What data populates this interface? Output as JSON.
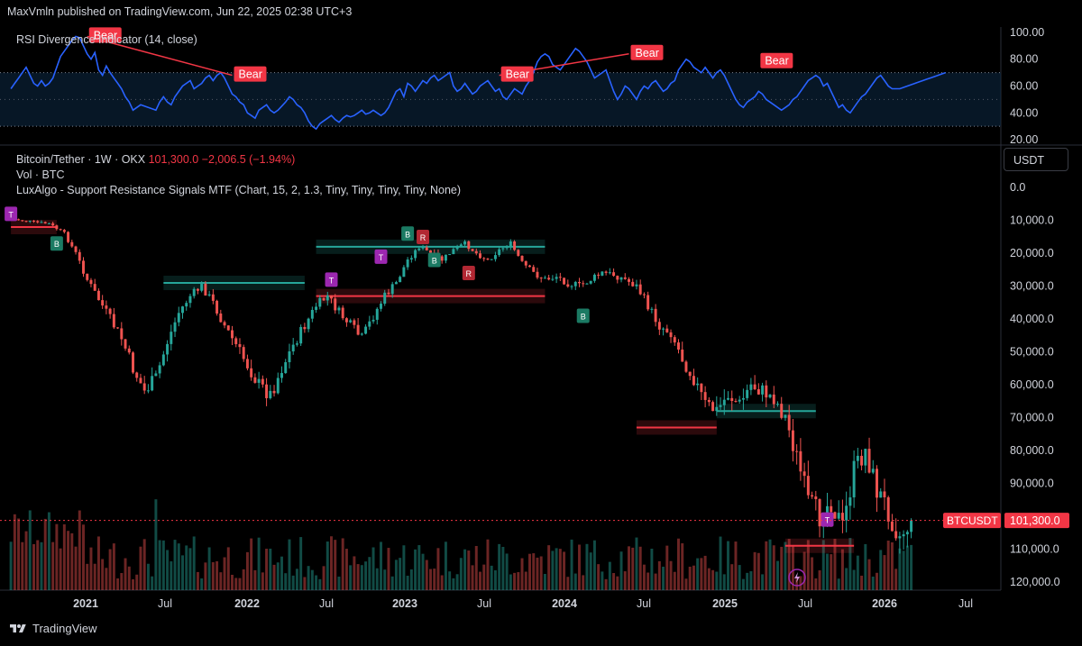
{
  "header": {
    "publisher": "MaxVmln published on TradingView.com, Jun 22, 2025 02:38 UTC+3"
  },
  "rsi": {
    "label": "RSI Divergence Indicator (14, close)",
    "bear_label": "Bear",
    "ticks": [
      "100.00",
      "80.00",
      "60.00",
      "40.00",
      "20.00"
    ]
  },
  "legend": {
    "symbol": "Bitcoin/Tether · 1W · OKX",
    "price": "101,300.0",
    "change": "−2,006.5 (−1.94%)",
    "vol": "Vol · BTC",
    "indicator": "LuxAlgo - Support Resistance Signals MTF (Chart, 15, 2, 1.3, Tiny, Tiny, Tiny, Tiny, None)"
  },
  "currency": "USDT",
  "price_badge": {
    "symbol": "BTCUSDT",
    "value": "101,300.0"
  },
  "footer": {
    "brand": "TradingView"
  },
  "colors": {
    "up": "#26a69a",
    "down": "#ef5350",
    "rsi": "#2962ff",
    "bear": "#f23645"
  },
  "chart_data": [
    {
      "type": "line",
      "title": "RSI Divergence Indicator (14, close)",
      "y_ticks": [
        100,
        80,
        60,
        40,
        20
      ],
      "bands": [
        30,
        70
      ],
      "ylim": [
        18,
        104
      ],
      "x": [
        0,
        1,
        2,
        3,
        4,
        5,
        6,
        7,
        8,
        9,
        10,
        11,
        12,
        13,
        14,
        15,
        16,
        17,
        18,
        19,
        20,
        21,
        22,
        23,
        24,
        25,
        26,
        27,
        28,
        29,
        30,
        31,
        32,
        33,
        34,
        35,
        36,
        37,
        38,
        39,
        40,
        41,
        42,
        43,
        44,
        45,
        46,
        47,
        48,
        49,
        50,
        51,
        52,
        53,
        54,
        55,
        56,
        57,
        58,
        59,
        60,
        61,
        62,
        63,
        64,
        65,
        66,
        67,
        68,
        69,
        70,
        71,
        72,
        73,
        74,
        75,
        76,
        77,
        78,
        79,
        80,
        81,
        82,
        83,
        84,
        85,
        86,
        87,
        88,
        89,
        90,
        91,
        92,
        93,
        94,
        95,
        96,
        97,
        98,
        99,
        100,
        101,
        102,
        103,
        104,
        105,
        106,
        107,
        108,
        109,
        110,
        111,
        112,
        113,
        114,
        115,
        116,
        117,
        118,
        119,
        120,
        121,
        122,
        123,
        124,
        125,
        126,
        127,
        128,
        129,
        130,
        131,
        132,
        133,
        134,
        135,
        136,
        137,
        138,
        139,
        140,
        141,
        142,
        143,
        144,
        145,
        146,
        147,
        148,
        149,
        150,
        151,
        152,
        153,
        154,
        155,
        156,
        157,
        158,
        159,
        160,
        161,
        162,
        163,
        164,
        165,
        166,
        167,
        168,
        169,
        170,
        171,
        172,
        173,
        174,
        175,
        176,
        177,
        178,
        179,
        180,
        181,
        182,
        183,
        184,
        185,
        186,
        187,
        188,
        189,
        190,
        191,
        192,
        193,
        194,
        195,
        196,
        197,
        198,
        199,
        200,
        201,
        202,
        203,
        204,
        205,
        206,
        207,
        208,
        209,
        210,
        211,
        212,
        213,
        214,
        215,
        216,
        217,
        218,
        219,
        220,
        221,
        222,
        223,
        224,
        225,
        226,
        227,
        228,
        229,
        230,
        231,
        232,
        233,
        234,
        235,
        236,
        237,
        238,
        239,
        240,
        241,
        242,
        243,
        244,
        245
      ],
      "values": [
        58,
        62,
        66,
        70,
        74,
        68,
        62,
        60,
        64,
        60,
        62,
        66,
        74,
        82,
        86,
        90,
        94,
        97,
        96,
        90,
        84,
        80,
        85,
        72,
        68,
        75,
        70,
        66,
        62,
        58,
        52,
        48,
        42,
        44,
        46,
        45,
        44,
        43,
        42,
        48,
        52,
        48,
        46,
        52,
        56,
        60,
        62,
        64,
        58,
        60,
        62,
        66,
        68,
        64,
        68,
        70,
        66,
        60,
        54,
        52,
        48,
        46,
        40,
        38,
        36,
        42,
        44,
        46,
        42,
        40,
        42,
        45,
        48,
        52,
        50,
        46,
        44,
        40,
        34,
        30,
        28,
        32,
        34,
        36,
        38,
        35,
        33,
        36,
        38,
        37,
        38,
        40,
        42,
        39,
        40,
        42,
        40,
        38,
        40,
        44,
        50,
        56,
        58,
        52,
        62,
        60,
        56,
        60,
        64,
        62,
        66,
        68,
        64,
        66,
        68,
        70,
        60,
        56,
        58,
        62,
        58,
        54,
        56,
        60,
        62,
        64,
        60,
        56,
        58,
        52,
        50,
        54,
        58,
        56,
        54,
        60,
        64,
        70,
        78,
        82,
        84,
        82,
        76,
        74,
        72,
        76,
        80,
        84,
        88,
        86,
        82,
        78,
        72,
        66,
        68,
        70,
        72,
        64,
        56,
        50,
        54,
        60,
        58,
        54,
        50,
        56,
        60,
        58,
        62,
        64,
        60,
        56,
        58,
        62,
        64,
        72,
        76,
        80,
        78,
        74,
        72,
        70,
        74,
        70,
        66,
        70,
        72,
        68,
        62,
        56,
        50,
        46,
        44,
        48,
        50,
        52,
        56,
        54,
        50,
        48,
        46,
        44,
        42,
        44,
        46,
        50,
        52,
        56,
        60,
        64,
        66,
        68,
        66,
        60,
        62,
        56,
        50,
        44,
        46,
        42,
        40,
        44,
        48,
        52,
        54,
        58,
        62,
        66,
        68,
        64,
        60,
        58,
        58,
        58,
        59,
        60,
        61,
        62,
        63,
        64,
        65,
        66,
        67,
        68,
        69,
        70
      ],
      "annotations": [
        {
          "text": "Bear",
          "x": 20,
          "y": 97
        },
        {
          "text": "Bear",
          "x": 58,
          "y": 68
        },
        {
          "text": "Bear",
          "x": 128,
          "y": 68
        },
        {
          "text": "Bear",
          "x": 162,
          "y": 84
        },
        {
          "text": "Bear",
          "x": 196,
          "y": 78
        }
      ]
    },
    {
      "type": "candlestick",
      "title": "Bitcoin/Tether · 1W · OKX",
      "y_scale": "inverted",
      "y_ticks": [
        0,
        10000,
        20000,
        30000,
        40000,
        50000,
        60000,
        70000,
        80000,
        90000,
        100000,
        110000,
        120000
      ],
      "y_tick_labels": [
        "0.0",
        "10,000.0",
        "20,000.0",
        "30,000.0",
        "40,000.0",
        "50,000.0",
        "60,000.0",
        "70,000.0",
        "80,000.0",
        "90,000.0",
        "",
        "110,000.0",
        "120,000.0"
      ],
      "ylim": [
        -5000,
        122500
      ],
      "x_tick_labels": [
        "2021",
        "Jul",
        "2022",
        "Jul",
        "2023",
        "Jul",
        "2024",
        "Jul",
        "2025",
        "Jul",
        "2026",
        "Jul"
      ],
      "last_price": 101300,
      "close_path": [
        [
          0,
          9500
        ],
        [
          6,
          10500
        ],
        [
          10,
          11000
        ],
        [
          14,
          14000
        ],
        [
          17,
          20000
        ],
        [
          20,
          28000
        ],
        [
          23,
          34000
        ],
        [
          26,
          40000
        ],
        [
          29,
          46000
        ],
        [
          32,
          55000
        ],
        [
          35,
          62000
        ],
        [
          38,
          58000
        ],
        [
          41,
          47000
        ],
        [
          44,
          38000
        ],
        [
          47,
          33000
        ],
        [
          50,
          30000
        ],
        [
          53,
          35000
        ],
        [
          56,
          42000
        ],
        [
          59,
          48000
        ],
        [
          62,
          54000
        ],
        [
          65,
          60000
        ],
        [
          68,
          63000
        ],
        [
          71,
          55000
        ],
        [
          74,
          48000
        ],
        [
          77,
          42000
        ],
        [
          80,
          36000
        ],
        [
          83,
          33000
        ],
        [
          86,
          38000
        ],
        [
          89,
          42000
        ],
        [
          92,
          46000
        ],
        [
          95,
          39000
        ],
        [
          98,
          33000
        ],
        [
          101,
          29000
        ],
        [
          104,
          22000
        ],
        [
          107,
          18000
        ],
        [
          110,
          20000
        ],
        [
          113,
          22000
        ],
        [
          116,
          19000
        ],
        [
          119,
          17000
        ],
        [
          122,
          20000
        ],
        [
          125,
          22000
        ],
        [
          128,
          19000
        ],
        [
          131,
          17000
        ],
        [
          134,
          23000
        ],
        [
          137,
          26000
        ],
        [
          140,
          28000
        ],
        [
          143,
          27000
        ],
        [
          146,
          29000
        ],
        [
          149,
          30000
        ],
        [
          152,
          28000
        ],
        [
          155,
          26000
        ],
        [
          158,
          26500
        ],
        [
          161,
          28000
        ],
        [
          164,
          30000
        ],
        [
          167,
          36000
        ],
        [
          170,
          42000
        ],
        [
          173,
          44000
        ],
        [
          176,
          52000
        ],
        [
          179,
          58000
        ],
        [
          182,
          66000
        ],
        [
          185,
          68000
        ],
        [
          188,
          63000
        ],
        [
          191,
          66000
        ],
        [
          194,
          60000
        ],
        [
          197,
          62000
        ],
        [
          200,
          64000
        ],
        [
          203,
          70000
        ],
        [
          206,
          82000
        ],
        [
          209,
          96000
        ],
        [
          212,
          100000
        ],
        [
          215,
          95000
        ],
        [
          218,
          104000
        ],
        [
          221,
          86000
        ],
        [
          224,
          80000
        ],
        [
          227,
          92000
        ],
        [
          230,
          98000
        ],
        [
          233,
          106000
        ],
        [
          236,
          101300
        ]
      ],
      "support_resistance": [
        {
          "x0": 0,
          "x1": 12,
          "y": 12000,
          "color": "red"
        },
        {
          "x0": 40,
          "x1": 77,
          "y": 29000,
          "color": "green"
        },
        {
          "x0": 80,
          "x1": 140,
          "y": 18000,
          "color": "green"
        },
        {
          "x0": 80,
          "x1": 140,
          "y": 33000,
          "color": "red"
        },
        {
          "x0": 164,
          "x1": 185,
          "y": 73000,
          "color": "red"
        },
        {
          "x0": 185,
          "x1": 211,
          "y": 68000,
          "color": "green"
        },
        {
          "x0": 203,
          "x1": 221,
          "y": 109000,
          "color": "red"
        }
      ],
      "signals": [
        {
          "text": "T",
          "x": 0,
          "y": 8000
        },
        {
          "text": "B",
          "x": 12,
          "y": 17000
        },
        {
          "text": "T",
          "x": 84,
          "y": 28000
        },
        {
          "text": "T",
          "x": 97,
          "y": 21000
        },
        {
          "text": "B",
          "x": 104,
          "y": 14000
        },
        {
          "text": "R",
          "x": 108,
          "y": 15000
        },
        {
          "text": "B",
          "x": 111,
          "y": 22000
        },
        {
          "text": "R",
          "x": 120,
          "y": 26000
        },
        {
          "text": "B",
          "x": 150,
          "y": 39000
        },
        {
          "text": "T",
          "x": 214,
          "y": 101000
        }
      ]
    }
  ]
}
